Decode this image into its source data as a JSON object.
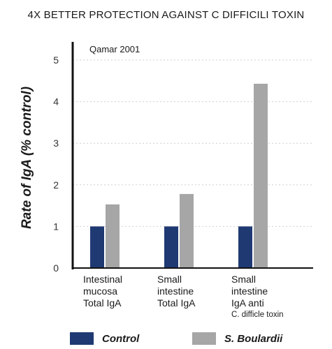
{
  "title": "4X BETTER PROTECTION AGAINST C DIFFICILI TOXIN",
  "source": "Qamar 2001",
  "colors": {
    "control": "#1f3a73",
    "boulardii": "#a6a6a6",
    "axis": "#111111",
    "gridline": "#cfcfcf"
  },
  "chart_data": {
    "type": "bar",
    "title": "4X BETTER PROTECTION AGAINST C DIFFICILI TOXIN",
    "ylabel": "Rate of IgA (% control)",
    "xlabel": "",
    "ylim": [
      0,
      5
    ],
    "yticks": [
      "0",
      "1",
      "2",
      "3",
      "4",
      "5"
    ],
    "grid": "y dotted",
    "legend": "bottom",
    "categories": [
      {
        "lines": [
          "Intestinal",
          "mucosa",
          "Total IgA"
        ],
        "small": ""
      },
      {
        "lines": [
          "Small",
          "intestine",
          "Total IgA"
        ],
        "small": ""
      },
      {
        "lines": [
          "Small",
          "intestine",
          "IgA anti"
        ],
        "small": "C. difficle toxin"
      }
    ],
    "series": [
      {
        "name": "Control",
        "values": [
          1.0,
          1.0,
          1.0
        ]
      },
      {
        "name": "S. Boulardii",
        "values": [
          1.53,
          1.78,
          4.43
        ]
      }
    ]
  }
}
